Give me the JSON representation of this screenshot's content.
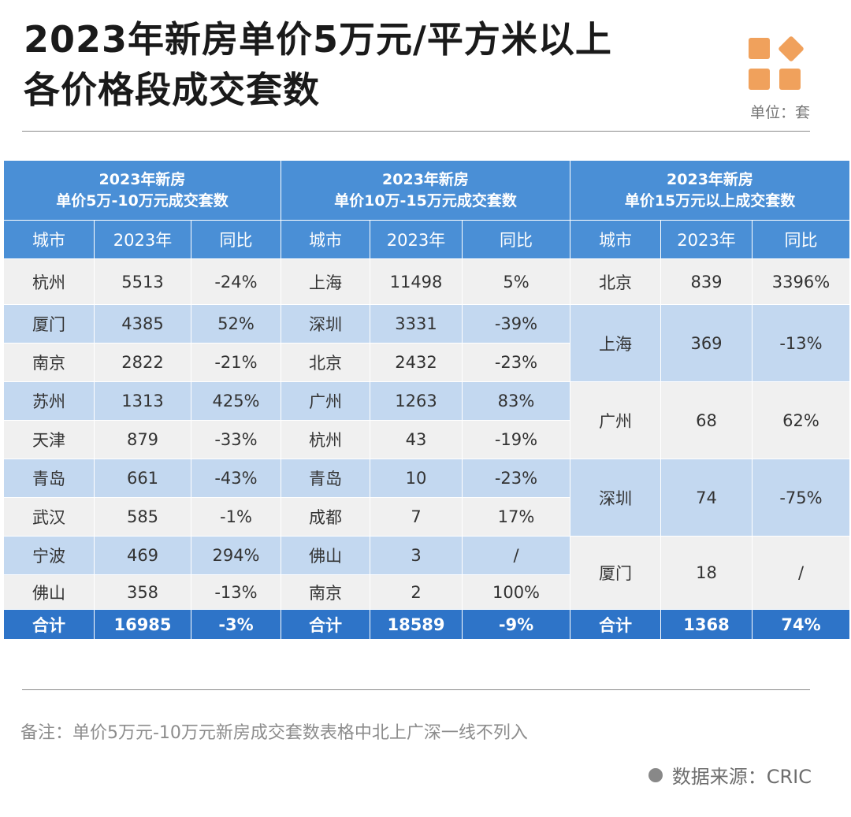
{
  "title": {
    "line1": "2023年新房单价5万元/平方米以上",
    "line2": "各价格段成交套数"
  },
  "unit_label": "单位：套",
  "colors": {
    "header": "#4a8fd6",
    "total": "#2e74c8",
    "stripe": "#c3d8f0",
    "base": "#f0f0f0",
    "logo": "#f0a15c"
  },
  "tables": [
    {
      "header": [
        "2023年新房",
        "单价5万-10万元成交套数"
      ],
      "columns": [
        "城市",
        "2023年",
        "同比"
      ],
      "rows": [
        [
          "杭州",
          "5513",
          "-24%"
        ],
        [
          "厦门",
          "4385",
          "52%"
        ],
        [
          "南京",
          "2822",
          "-21%"
        ],
        [
          "苏州",
          "1313",
          "425%"
        ],
        [
          "天津",
          "879",
          "-33%"
        ],
        [
          "青岛",
          "661",
          "-43%"
        ],
        [
          "武汉",
          "585",
          "-1%"
        ],
        [
          "宁波",
          "469",
          "294%"
        ],
        [
          "佛山",
          "358",
          "-13%"
        ]
      ],
      "total": [
        "合计",
        "16985",
        "-3%"
      ]
    },
    {
      "header": [
        "2023年新房",
        "单价10万-15万元成交套数"
      ],
      "columns": [
        "城市",
        "2023年",
        "同比"
      ],
      "rows": [
        [
          "上海",
          "11498",
          "5%"
        ],
        [
          "深圳",
          "3331",
          "-39%"
        ],
        [
          "北京",
          "2432",
          "-23%"
        ],
        [
          "广州",
          "1263",
          "83%"
        ],
        [
          "杭州",
          "43",
          "-19%"
        ],
        [
          "青岛",
          "10",
          "-23%"
        ],
        [
          "成都",
          "7",
          "17%"
        ],
        [
          "佛山",
          "3",
          "/"
        ],
        [
          "南京",
          "2",
          "100%"
        ]
      ],
      "total": [
        "合计",
        "18589",
        "-9%"
      ]
    },
    {
      "header": [
        "2023年新房",
        "单价15万元以上成交套数"
      ],
      "columns": [
        "城市",
        "2023年",
        "同比"
      ],
      "rows": [
        [
          "北京",
          "839",
          "3396%"
        ],
        [
          "上海",
          "369",
          "-13%"
        ],
        [
          "广州",
          "68",
          "62%"
        ],
        [
          "深圳",
          "74",
          "-75%"
        ],
        [
          "厦门",
          "18",
          "/"
        ]
      ],
      "total": [
        "合计",
        "1368",
        "74%"
      ]
    }
  ],
  "note": "备注：单价5万元-10万元新房成交套数表格中北上广深一线不列入",
  "source": "数据来源：CRIC"
}
